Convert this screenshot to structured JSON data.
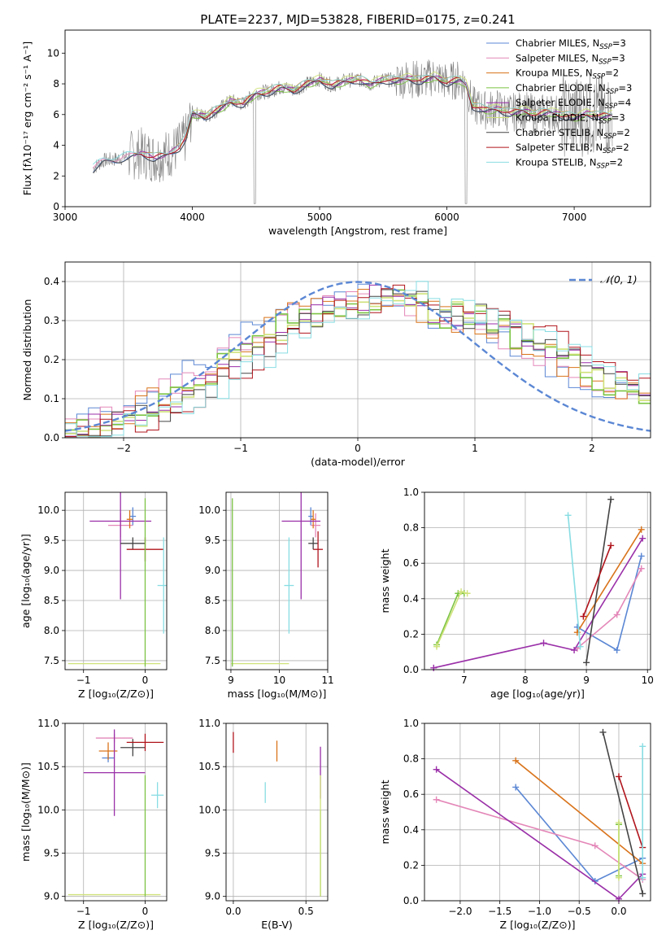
{
  "figure_title": "PLATE=2237, MJD=53828, FIBERID=0175, z=0.241",
  "colors": {
    "chabrier_miles": "#5b87d4",
    "salpeter_miles": "#e487b8",
    "kroupa_miles": "#d9731a",
    "chabrier_elodie": "#7cc444",
    "salpeter_elodie": "#9a2fa8",
    "kroupa_elodie": "#cfe27a",
    "chabrier_stelib": "#444444",
    "salpeter_stelib": "#b0141c",
    "kroupa_stelib": "#88dde3",
    "data": "#808080",
    "normal": "#5b87d4"
  },
  "chart_data": [
    {
      "id": "spectrum",
      "type": "line",
      "title": "PLATE=2237, MJD=53828, FIBERID=0175, z=0.241",
      "xlabel": "wavelength [Angstrom, rest frame]",
      "ylabel": "Flux [fλ10⁻¹⁷ erg cm⁻² s⁻¹ A⁻¹]",
      "xlim": [
        3000,
        7600
      ],
      "ylim": [
        0,
        11.5
      ],
      "xticks": [
        "3000",
        "4000",
        "5000",
        "6000",
        "7000"
      ],
      "yticks": [
        "0",
        "2",
        "4",
        "6",
        "8",
        "10"
      ],
      "grid": false,
      "legend": "top-right",
      "legend_entries": [
        {
          "key": "chabrier_miles",
          "label": "Chabrier MILES, N",
          "sub": "SSP",
          "tail": "=3"
        },
        {
          "key": "salpeter_miles",
          "label": "Salpeter MILES, N",
          "sub": "SSP",
          "tail": "=3"
        },
        {
          "key": "kroupa_miles",
          "label": "Kroupa MILES, N",
          "sub": "SSP",
          "tail": "=2"
        },
        {
          "key": "chabrier_elodie",
          "label": "Chabrier ELODIE, N",
          "sub": "SSP",
          "tail": "=3"
        },
        {
          "key": "salpeter_elodie",
          "label": "Salpeter ELODIE, N",
          "sub": "SSP",
          "tail": "=4"
        },
        {
          "key": "kroupa_elodie",
          "label": "Kroupa ELODIE, N",
          "sub": "SSP",
          "tail": "=3"
        },
        {
          "key": "chabrier_stelib",
          "label": "Chabrier STELIB, N",
          "sub": "SSP",
          "tail": "=2"
        },
        {
          "key": "salpeter_stelib",
          "label": "Salpeter STELIB, N",
          "sub": "SSP",
          "tail": "=2"
        },
        {
          "key": "kroupa_stelib",
          "label": "Kroupa STELIB, N",
          "sub": "SSP",
          "tail": "=2"
        }
      ],
      "continuum_x": [
        3220,
        3300,
        3400,
        3500,
        3600,
        3700,
        3800,
        3900,
        3950,
        4000,
        4100,
        4200,
        4300,
        4400,
        4500,
        4600,
        4700,
        4800,
        4900,
        5000,
        5100,
        5200,
        5300,
        5400,
        5500,
        5600,
        5700,
        5800,
        5900,
        6000,
        6100,
        6150,
        6200,
        6300,
        6400,
        6500,
        6600,
        6700,
        6800,
        6900,
        7000,
        7100,
        7200,
        7300
      ],
      "continuum_y": [
        2.5,
        3.0,
        3.1,
        3.3,
        3.5,
        3.2,
        3.4,
        3.9,
        4.5,
        6.1,
        5.9,
        6.3,
        6.9,
        6.7,
        7.4,
        7.5,
        7.8,
        7.6,
        8.0,
        8.3,
        7.9,
        8.2,
        8.3,
        8.0,
        8.3,
        8.2,
        8.4,
        8.2,
        8.5,
        8.1,
        8.3,
        8.0,
        6.6,
        6.3,
        6.4,
        6.1,
        6.3,
        6.0,
        6.2,
        6.0,
        5.8,
        6.1,
        5.9,
        6.0
      ]
    },
    {
      "id": "residuals",
      "type": "line",
      "xlabel": "(data-model)/error",
      "ylabel": "Normed distribution",
      "xlim": [
        -2.5,
        2.5
      ],
      "ylim": [
        0,
        0.45
      ],
      "xticks": [
        "−2",
        "−1",
        "0",
        "1",
        "2"
      ],
      "yticks": [
        "0.0",
        "0.1",
        "0.2",
        "0.3",
        "0.4"
      ],
      "grid": true,
      "legend": "top-right",
      "legend_entries": [
        {
          "key": "normal",
          "label": "𝒩(0, 1)"
        }
      ],
      "shape_x": [
        -2.5,
        -2.0,
        -1.5,
        -1.0,
        -0.5,
        0.0,
        0.3,
        0.5,
        1.0,
        1.5,
        2.0,
        2.5
      ],
      "shape_y": [
        0.02,
        0.05,
        0.12,
        0.22,
        0.31,
        0.35,
        0.37,
        0.33,
        0.3,
        0.25,
        0.16,
        0.1
      ]
    },
    {
      "id": "age-vs-z",
      "type": "scatter",
      "xlabel": "Z [log₁₀(Z/Z⊙)]",
      "ylabel": "age  [log₁₀(age/yr)]",
      "xlim": [
        -1.3,
        0.35
      ],
      "ylim": [
        7.35,
        10.3
      ],
      "xticks": [
        "−1",
        "0"
      ],
      "yticks": [
        "7.5",
        "8.0",
        "8.5",
        "9.0",
        "9.5",
        "10.0"
      ],
      "grid": true,
      "points": [
        {
          "key": "chabrier_miles",
          "x": -0.2,
          "y": 9.9,
          "xerr": 0.05,
          "yerr": 0.15
        },
        {
          "key": "salpeter_miles",
          "x": -0.4,
          "y": 9.75,
          "xerr": 0.2,
          "yerr": 0.2
        },
        {
          "key": "kroupa_miles",
          "x": -0.25,
          "y": 9.85,
          "xerr": 0.05,
          "yerr": 0.15
        },
        {
          "key": "salpeter_elodie",
          "x": -0.4,
          "y": 9.82,
          "xerr": 0.5,
          "yerr": 1.3
        },
        {
          "key": "kroupa_elodie",
          "x": -0.5,
          "y": 7.45,
          "xerr": 0.75,
          "yerr": 0.0
        },
        {
          "key": "chabrier_stelib",
          "x": -0.2,
          "y": 9.45,
          "xerr": 0.2,
          "yerr": 0.1
        },
        {
          "key": "salpeter_stelib",
          "x": 0.0,
          "y": 9.35,
          "xerr": 0.3,
          "yerr": 0.2
        },
        {
          "key": "kroupa_stelib",
          "x": 0.3,
          "y": 8.75,
          "xerr": 0.1,
          "yerr": 0.8
        },
        {
          "key": "chabrier_elodie",
          "x": 0.0,
          "y": 8.8,
          "xerr": 0.0,
          "yerr": 1.4
        }
      ]
    },
    {
      "id": "age-vs-mass",
      "type": "scatter",
      "xlabel": "mass [log₁₀(M/M⊙)]",
      "xlim": [
        8.9,
        11.0
      ],
      "ylim": [
        7.35,
        10.3
      ],
      "xticks": [
        "9",
        "10",
        "11"
      ],
      "yticks": [
        "7.5",
        "8.0",
        "8.5",
        "9.0",
        "9.5",
        "10.0"
      ],
      "grid": true,
      "points": [
        {
          "key": "chabrier_miles",
          "x": 10.65,
          "y": 9.9,
          "xerr": 0.05,
          "yerr": 0.15
        },
        {
          "key": "salpeter_miles",
          "x": 10.75,
          "y": 9.75,
          "xerr": 0.1,
          "yerr": 0.2
        },
        {
          "key": "kroupa_miles",
          "x": 10.7,
          "y": 9.85,
          "xerr": 0.05,
          "yerr": 0.15
        },
        {
          "key": "salpeter_elodie",
          "x": 10.45,
          "y": 9.82,
          "xerr": 0.4,
          "yerr": 1.3
        },
        {
          "key": "kroupa_elodie",
          "x": 9.6,
          "y": 7.45,
          "xerr": 0.6,
          "yerr": 0.0
        },
        {
          "key": "chabrier_stelib",
          "x": 10.7,
          "y": 9.45,
          "xerr": 0.1,
          "yerr": 0.1
        },
        {
          "key": "salpeter_stelib",
          "x": 10.8,
          "y": 9.35,
          "xerr": 0.1,
          "yerr": 0.3
        },
        {
          "key": "kroupa_stelib",
          "x": 10.2,
          "y": 8.75,
          "xerr": 0.1,
          "yerr": 0.8
        },
        {
          "key": "chabrier_elodie",
          "x": 9.03,
          "y": 8.8,
          "xerr": 0.0,
          "yerr": 1.4
        }
      ]
    },
    {
      "id": "weight-vs-age",
      "type": "line",
      "xlabel": "age  [log₁₀(age/yr)]",
      "ylabel": "mass weight",
      "xlim": [
        6.35,
        10.05
      ],
      "ylim": [
        0,
        1.0
      ],
      "xticks": [
        "7",
        "8",
        "9",
        "10"
      ],
      "yticks": [
        "0.0",
        "0.2",
        "0.4",
        "0.6",
        "0.8",
        "1.0"
      ],
      "grid": true,
      "series": [
        {
          "key": "chabrier_miles",
          "x": [
            8.85,
            9.5,
            9.9
          ],
          "y": [
            0.24,
            0.11,
            0.64
          ]
        },
        {
          "key": "salpeter_miles",
          "x": [
            8.85,
            9.5,
            9.9
          ],
          "y": [
            0.12,
            0.31,
            0.57
          ]
        },
        {
          "key": "kroupa_miles",
          "x": [
            8.85,
            9.9
          ],
          "y": [
            0.21,
            0.79
          ]
        },
        {
          "key": "salpeter_elodie",
          "x": [
            6.5,
            8.3,
            8.8,
            9.92
          ],
          "y": [
            0.01,
            0.15,
            0.11,
            0.74
          ]
        },
        {
          "key": "chabrier_elodie",
          "x": [
            6.55,
            6.9,
            7.0
          ],
          "y": [
            0.14,
            0.43,
            0.43
          ]
        },
        {
          "key": "kroupa_elodie",
          "x": [
            6.55,
            6.95,
            7.05
          ],
          "y": [
            0.13,
            0.44,
            0.43
          ]
        },
        {
          "key": "chabrier_stelib",
          "x": [
            9.0,
            9.4
          ],
          "y": [
            0.04,
            0.96
          ]
        },
        {
          "key": "salpeter_stelib",
          "x": [
            8.95,
            9.4
          ],
          "y": [
            0.3,
            0.7
          ]
        },
        {
          "key": "kroupa_stelib",
          "x": [
            8.7,
            8.9
          ],
          "y": [
            0.87,
            0.13
          ]
        }
      ]
    },
    {
      "id": "mass-vs-z",
      "type": "scatter",
      "xlabel": "Z [log₁₀(Z/Z⊙)]",
      "ylabel": "mass [log₁₀(M/M⊙)]",
      "xlim": [
        -1.3,
        0.35
      ],
      "ylim": [
        8.95,
        11.0
      ],
      "xticks": [
        "−1",
        "0"
      ],
      "yticks": [
        "9.0",
        "9.5",
        "10.0",
        "10.5",
        "11.0"
      ],
      "grid": true,
      "points": [
        {
          "key": "chabrier_miles",
          "x": -0.6,
          "y": 10.6,
          "xerr": 0.1,
          "yerr": 0.05
        },
        {
          "key": "salpeter_miles",
          "x": -0.5,
          "y": 10.83,
          "xerr": 0.3,
          "yerr": 0.05
        },
        {
          "key": "kroupa_miles",
          "x": -0.6,
          "y": 10.68,
          "xerr": 0.15,
          "yerr": 0.1
        },
        {
          "key": "salpeter_elodie",
          "x": -0.5,
          "y": 10.43,
          "xerr": 0.5,
          "yerr": 0.5
        },
        {
          "key": "kroupa_elodie",
          "x": -0.5,
          "y": 9.02,
          "xerr": 0.75,
          "yerr": 0.0
        },
        {
          "key": "chabrier_stelib",
          "x": -0.2,
          "y": 10.72,
          "xerr": 0.2,
          "yerr": 0.1
        },
        {
          "key": "salpeter_stelib",
          "x": 0.0,
          "y": 10.78,
          "xerr": 0.3,
          "yerr": 0.1
        },
        {
          "key": "kroupa_stelib",
          "x": 0.2,
          "y": 10.17,
          "xerr": 0.1,
          "yerr": 0.15
        },
        {
          "key": "chabrier_elodie",
          "x": 0.0,
          "y": 9.7,
          "xerr": 0.0,
          "yerr": 0.7
        }
      ]
    },
    {
      "id": "mass-vs-ebv",
      "type": "scatter",
      "xlabel": "E(B-V)",
      "xlim": [
        -0.05,
        0.65
      ],
      "ylim": [
        8.95,
        11.0
      ],
      "xticks": [
        "0.0",
        "0.5"
      ],
      "yticks": [
        "9.0",
        "9.5",
        "10.0",
        "10.5",
        "11.0"
      ],
      "grid": true,
      "points": [
        {
          "key": "salpeter_stelib",
          "x": 0.0,
          "y": 10.78,
          "xerr": 0.0,
          "yerr": 0.12
        },
        {
          "key": "kroupa_miles",
          "x": 0.3,
          "y": 10.68,
          "xerr": 0.0,
          "yerr": 0.12
        },
        {
          "key": "kroupa_stelib",
          "x": 0.22,
          "y": 10.2,
          "xerr": 0.0,
          "yerr": 0.12
        },
        {
          "key": "salpeter_elodie",
          "x": 0.6,
          "y": 10.43,
          "xerr": 0.0,
          "yerr": 0.3
        },
        {
          "key": "chabrier_elodie",
          "x": 0.6,
          "y": 9.5,
          "xerr": 0.0,
          "yerr": 0.5
        },
        {
          "key": "kroupa_elodie",
          "x": 0.6,
          "y": 9.7,
          "xerr": 0.0,
          "yerr": 0.7
        }
      ]
    },
    {
      "id": "weight-vs-z",
      "type": "line",
      "xlabel": "Z [log₁₀(Z/Z⊙)]",
      "ylabel": "mass weight",
      "xlim": [
        -2.45,
        0.4
      ],
      "ylim": [
        0,
        1.0
      ],
      "xticks": [
        "−2.0",
        "−1.5",
        "−1.0",
        "−0.5",
        "0.0"
      ],
      "yticks": [
        "0.0",
        "0.2",
        "0.4",
        "0.6",
        "0.8",
        "1.0"
      ],
      "grid": true,
      "series": [
        {
          "key": "chabrier_miles",
          "x": [
            -1.3,
            -0.3,
            0.3
          ],
          "y": [
            0.64,
            0.11,
            0.24
          ]
        },
        {
          "key": "salpeter_miles",
          "x": [
            -2.3,
            -0.3,
            0.3
          ],
          "y": [
            0.57,
            0.31,
            0.12
          ]
        },
        {
          "key": "kroupa_miles",
          "x": [
            -1.3,
            0.3
          ],
          "y": [
            0.79,
            0.21
          ]
        },
        {
          "key": "salpeter_elodie",
          "x": [
            -2.3,
            0.0,
            0.3
          ],
          "y": [
            0.74,
            0.01,
            0.15
          ]
        },
        {
          "key": "chabrier_elodie",
          "x": [
            0.0,
            0.0
          ],
          "y": [
            0.43,
            0.14
          ]
        },
        {
          "key": "kroupa_elodie",
          "x": [
            0.0,
            0.0
          ],
          "y": [
            0.44,
            0.13
          ]
        },
        {
          "key": "chabrier_stelib",
          "x": [
            -0.2,
            0.3
          ],
          "y": [
            0.95,
            0.04
          ]
        },
        {
          "key": "salpeter_stelib",
          "x": [
            0.0,
            0.3
          ],
          "y": [
            0.7,
            0.3
          ]
        },
        {
          "key": "kroupa_stelib",
          "x": [
            0.3,
            0.3
          ],
          "y": [
            0.87,
            0.13
          ]
        }
      ]
    }
  ]
}
